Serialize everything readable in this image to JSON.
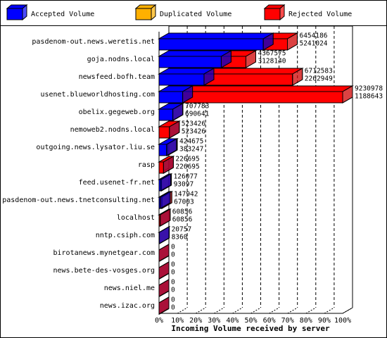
{
  "chart_data": {
    "type": "bar",
    "orientation": "horizontal",
    "xlabel": "Incoming Volume received by server",
    "categories": [
      "pasdenom-out.news.weretis.net",
      "goja.nodns.local",
      "newsfeed.bofh.team",
      "usenet.blueworldhosting.com",
      "obelix.gegeweb.org",
      "nemoweb2.nodns.local",
      "outgoing.news.lysator.liu.se",
      "rasp",
      "feed.usenet-fr.net",
      "pasdenom-out.news.tnetconsulting.net",
      "localhost",
      "nntp.csiph.com",
      "birotanews.mynetgear.com",
      "news.bete-des-vosges.org",
      "news.niel.me",
      "news.izac.org"
    ],
    "series": [
      {
        "name": "Accepted Volume",
        "color": "#0000ff",
        "values": [
          5241024,
          3128140,
          2262949,
          1188643,
          690641,
          523426,
          383247,
          226695,
          93097,
          67003,
          60856,
          8360,
          0,
          0,
          0,
          0
        ]
      },
      {
        "name": "Duplicated Volume",
        "color": "#ffb000",
        "values": [
          null,
          null,
          null,
          null,
          null,
          null,
          null,
          null,
          null,
          null,
          null,
          null,
          null,
          null,
          null,
          null
        ]
      },
      {
        "name": "Rejected Volume",
        "color": "#ff0000",
        "values": [
          6454186,
          4367575,
          6712583,
          9230978,
          707783,
          523426,
          424675,
          226695,
          126077,
          147942,
          60856,
          20757,
          0,
          0,
          0,
          0
        ]
      }
    ],
    "xlim": [
      0,
      9230978
    ],
    "xticks": [
      {
        "value": 0,
        "label": "0%"
      },
      {
        "value": 923097.8,
        "label": "10%"
      },
      {
        "value": 1846195.6,
        "label": "20%"
      },
      {
        "value": 2769293.4,
        "label": "30%"
      },
      {
        "value": 3692391.2,
        "label": "40%"
      },
      {
        "value": 4615489,
        "label": "50%"
      },
      {
        "value": 5538586.8,
        "label": "60%"
      },
      {
        "value": 6461684.6,
        "label": "70%"
      },
      {
        "value": 7384782.4,
        "label": "80%"
      },
      {
        "value": 8307880.2,
        "label": "90%"
      },
      {
        "value": 9230978,
        "label": "100%"
      }
    ],
    "grid": true
  }
}
